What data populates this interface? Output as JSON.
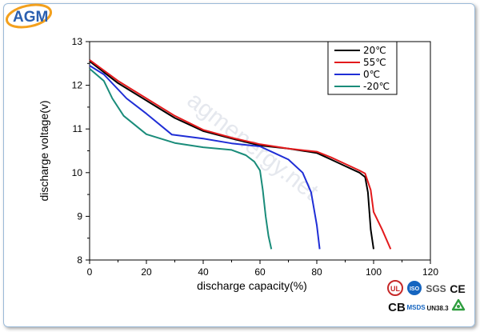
{
  "brand": {
    "logo_text": "AGM",
    "watermark": "agmenergy.net",
    "accent": "#2a5fb0"
  },
  "chart_data": {
    "type": "line",
    "title": "",
    "xlabel": "discharge capacity(%)",
    "ylabel": "discharge voltage(v)",
    "xlim": [
      0,
      120
    ],
    "ylim": [
      8,
      13
    ],
    "xticks": [
      0,
      20,
      40,
      60,
      80,
      100,
      120
    ],
    "yticks": [
      8,
      9,
      10,
      11,
      12,
      13
    ],
    "grid": false,
    "legend": "top-right",
    "series": [
      {
        "name": "20℃",
        "color": "#000000",
        "x": [
          0,
          10,
          20,
          30,
          40,
          50,
          60,
          70,
          80,
          85,
          90,
          95,
          97,
          98,
          99,
          100
        ],
        "y": [
          12.55,
          12.05,
          11.65,
          11.25,
          10.95,
          10.78,
          10.62,
          10.55,
          10.45,
          10.3,
          10.15,
          10.0,
          9.9,
          9.55,
          8.7,
          8.25
        ]
      },
      {
        "name": "55℃",
        "color": "#e31a1c",
        "x": [
          0,
          10,
          20,
          30,
          40,
          50,
          60,
          70,
          80,
          85,
          90,
          95,
          97,
          99,
          100,
          103,
          106
        ],
        "y": [
          12.58,
          12.1,
          11.7,
          11.3,
          10.98,
          10.8,
          10.65,
          10.55,
          10.48,
          10.35,
          10.2,
          10.05,
          9.98,
          9.6,
          9.1,
          8.7,
          8.25
        ]
      },
      {
        "name": "0℃",
        "color": "#1f2ed6",
        "x": [
          0,
          5,
          13,
          20,
          29,
          40,
          50,
          60,
          65,
          70,
          75,
          78,
          80,
          81
        ],
        "y": [
          12.45,
          12.25,
          11.7,
          11.35,
          10.87,
          10.78,
          10.67,
          10.6,
          10.45,
          10.3,
          10.0,
          9.55,
          8.8,
          8.25
        ]
      },
      {
        "name": "-20℃",
        "color": "#1a8c7a",
        "x": [
          0,
          5,
          8,
          12,
          20,
          30,
          40,
          50,
          55,
          58,
          60,
          61,
          62,
          63,
          64
        ],
        "y": [
          12.38,
          12.1,
          11.7,
          11.3,
          10.88,
          10.68,
          10.58,
          10.52,
          10.4,
          10.25,
          10.05,
          9.6,
          9.0,
          8.55,
          8.25
        ]
      }
    ]
  },
  "certs": {
    "items": [
      {
        "name": "ul",
        "text": "UL"
      },
      {
        "name": "iso",
        "text": "ISO"
      },
      {
        "name": "sgs",
        "text": "SGS"
      },
      {
        "name": "ce",
        "text": "CE"
      },
      {
        "name": "cb",
        "text": "CB"
      },
      {
        "name": "msds",
        "text": "MSDS"
      },
      {
        "name": "un383",
        "text": "UN38.3"
      }
    ]
  }
}
